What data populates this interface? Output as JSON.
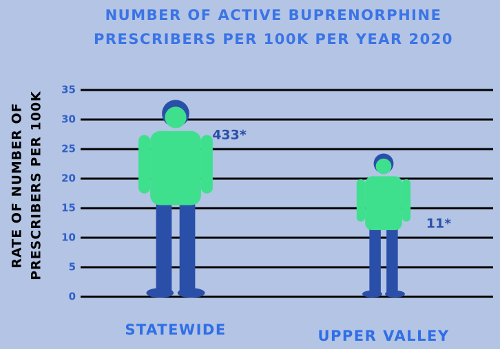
{
  "chart_data": {
    "type": "bar",
    "title": [
      "NUMBER OF ACTIVE BUPRENORPHINE",
      "PRESCRIBERS PER 100K PER YEAR 2020"
    ],
    "y_label": [
      "RATE OF NUMBER OF",
      "PRESCRIBERS PER 100K"
    ],
    "categories": [
      "STATEWIDE",
      "UPPER VALLEY"
    ],
    "values": [
      33,
      24
    ],
    "annotations": [
      "433*",
      "11*"
    ],
    "color": "#3ee08e",
    "ylim": [
      0,
      35
    ],
    "yticks": [
      0,
      5,
      10,
      15,
      20,
      25,
      30,
      35
    ],
    "grid": true
  }
}
